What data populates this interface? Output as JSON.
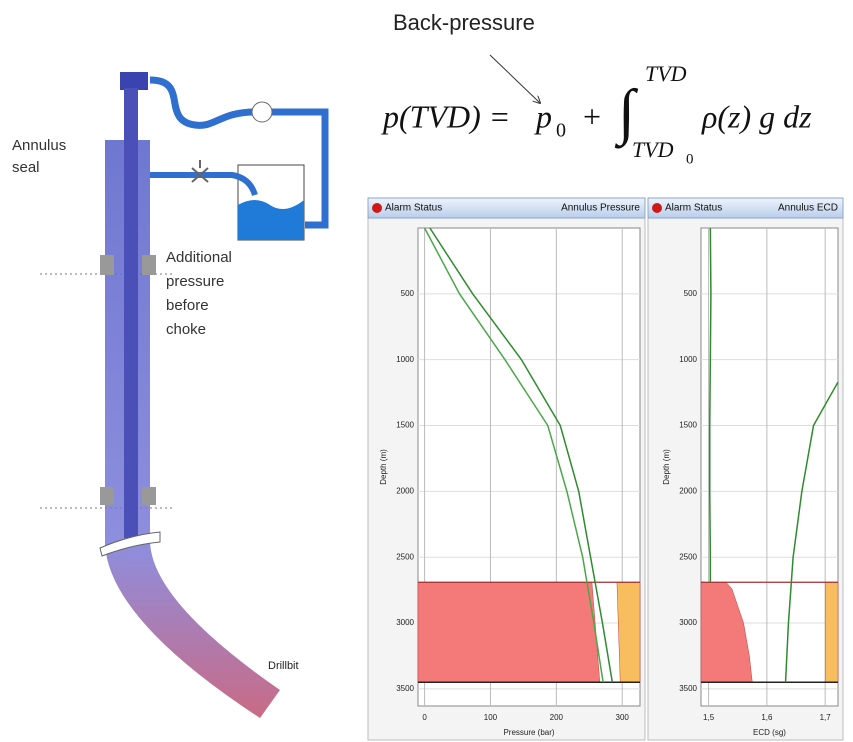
{
  "diagram": {
    "labels": {
      "annulus_seal": [
        "Annulus",
        "seal"
      ],
      "additional_pressure": [
        "Additional",
        "pressure",
        "before",
        "choke"
      ],
      "drillbit": "Drillbit",
      "back_pressure": "Back-pressure"
    }
  },
  "equation": {
    "left": "p(TVD) =",
    "p": "p",
    "p_sub": "0",
    "plus": "+",
    "integral": "∫",
    "upper": "TVD",
    "lower": "TVD",
    "lower_sub": "0",
    "integrand": "ρ(z) g dz"
  },
  "chart_data": [
    {
      "type": "line",
      "status": "Alarm Status",
      "title": "Annulus Pressure",
      "x_label": "Pressure (bar)",
      "y_label": "Depth (m)",
      "xlim": [
        -10,
        327
      ],
      "xticks": [
        0,
        100,
        200,
        300
      ],
      "ylim": [
        0,
        3630
      ],
      "y_inverted": true,
      "yticks": [
        500,
        1000,
        1500,
        2000,
        2500,
        3000,
        3500
      ],
      "grid": true,
      "series": [
        {
          "color": "#2e8b2e",
          "depth": [
            0,
            500,
            1000,
            1500,
            2000,
            2500,
            3000,
            3450
          ],
          "values": [
            8,
            73,
            147,
            206,
            234,
            252,
            270,
            285
          ]
        },
        {
          "color": "#4aa84a",
          "depth": [
            0,
            500,
            1000,
            1500,
            2000,
            2500,
            3000,
            3450
          ],
          "values": [
            0,
            53,
            122,
            187,
            216,
            240,
            257,
            271
          ]
        }
      ],
      "zones": [
        {
          "color": "#f47a7a",
          "side": "left",
          "depth": [
            2690,
            3450
          ],
          "values": [
            254,
            266
          ]
        },
        {
          "color": "#f7bd5e",
          "side": "right",
          "depth": [
            2690,
            3450
          ],
          "values": [
            292,
            297
          ]
        }
      ]
    },
    {
      "type": "line",
      "status": "Alarm Status",
      "title": "Annulus ECD",
      "x_label": "ECD (sg)",
      "y_label": "Depth (m)",
      "xlim": [
        1.487,
        1.722
      ],
      "xticks": [
        {
          "value": 1.5,
          "label": "1,5"
        },
        {
          "value": 1.6,
          "label": "1,6"
        },
        {
          "value": 1.7,
          "label": "1,7"
        }
      ],
      "ylim": [
        0,
        3630
      ],
      "y_inverted": true,
      "yticks": [
        500,
        1000,
        1500,
        2000,
        2500,
        3000,
        3500
      ],
      "grid": true,
      "series": [
        {
          "color": "#2e8b2e",
          "depth": [
            0,
            500,
            1000,
            1500,
            2000,
            2500,
            2690
          ],
          "values": [
            1.503,
            1.504,
            1.503,
            1.502,
            1.502,
            1.503,
            1.503
          ]
        },
        {
          "color": "#2e8b2e",
          "depth": [
            1170,
            1500,
            2000,
            2500,
            3000,
            3450
          ],
          "values": [
            1.722,
            1.68,
            1.66,
            1.645,
            1.637,
            1.632
          ]
        }
      ],
      "zones": [
        {
          "color": "#f47a7a",
          "side": "left",
          "depth": [
            2690,
            2740,
            3000,
            3250,
            3450
          ],
          "values": [
            1.53,
            1.54,
            1.56,
            1.57,
            1.575
          ]
        },
        {
          "color": "#f7bd5e",
          "side": "right",
          "depth": [
            2690,
            3450
          ],
          "values": [
            1.7,
            1.7
          ]
        }
      ]
    }
  ]
}
